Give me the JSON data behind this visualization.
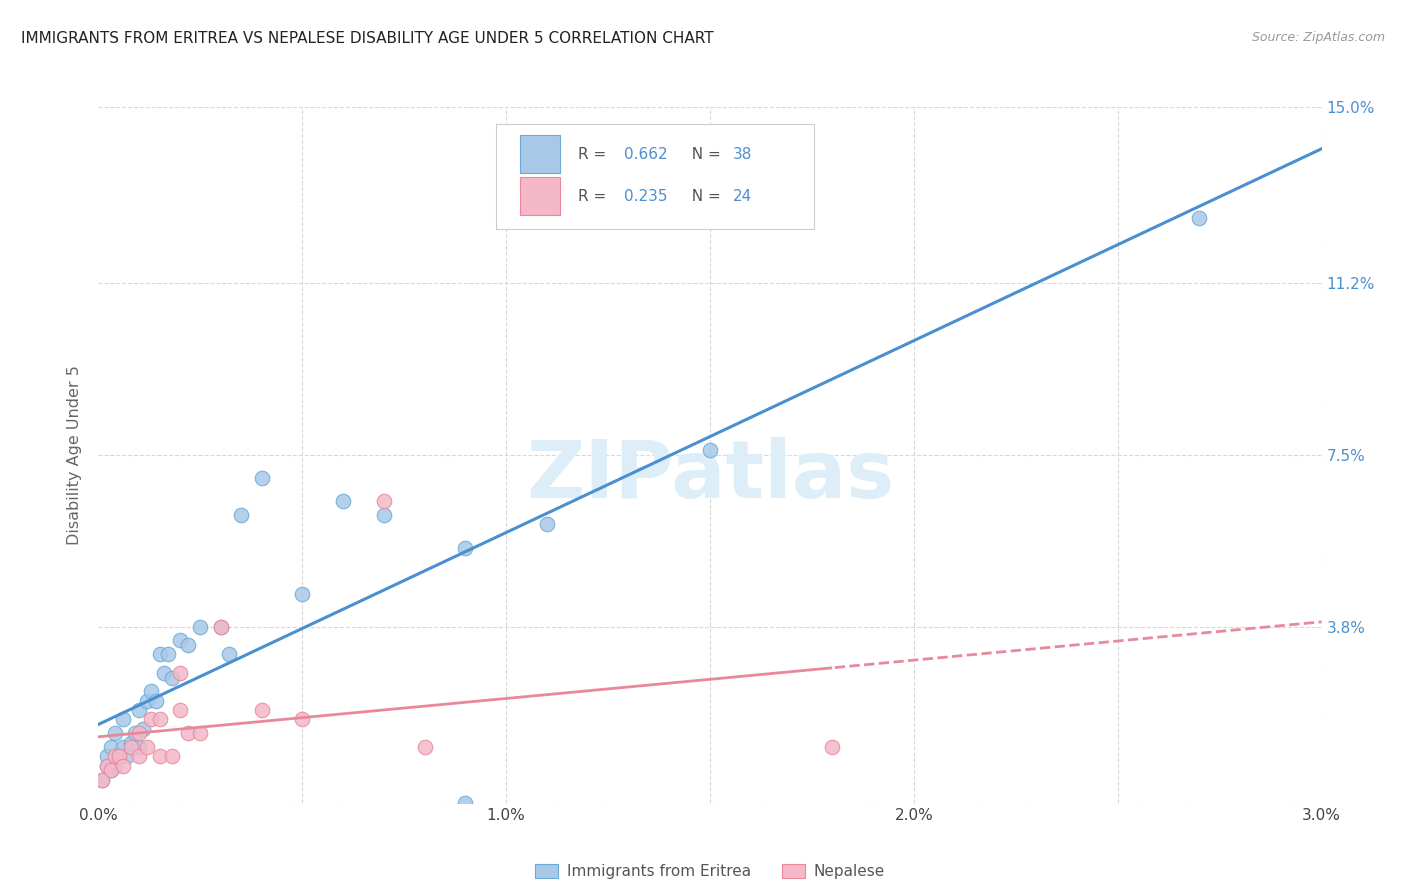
{
  "title": "IMMIGRANTS FROM ERITREA VS NEPALESE DISABILITY AGE UNDER 5 CORRELATION CHART",
  "source": "Source: ZipAtlas.com",
  "ylabel": "Disability Age Under 5",
  "y_ticks": [
    0.0,
    0.038,
    0.075,
    0.112,
    0.15
  ],
  "y_tick_labels_right": [
    "",
    "3.8%",
    "7.5%",
    "11.2%",
    "15.0%"
  ],
  "x_ticks": [
    0.0,
    0.005,
    0.01,
    0.015,
    0.02,
    0.025,
    0.03
  ],
  "x_tick_labels": [
    "0.0%",
    "",
    "1.0%",
    "",
    "2.0%",
    "",
    "3.0%"
  ],
  "xlim": [
    0.0,
    0.03
  ],
  "ylim": [
    0.0,
    0.15
  ],
  "legend_r1": "0.662",
  "legend_n1": "38",
  "legend_r2": "0.235",
  "legend_n2": "24",
  "color_blue_fill": "#a8c8e8",
  "color_blue_edge": "#6aaad4",
  "color_blue_line": "#4a90d0",
  "color_pink_fill": "#f4b8c8",
  "color_pink_edge": "#e8889a",
  "color_pink_line": "#e8889a",
  "background_color": "#ffffff",
  "grid_color": "#d8d8d8",
  "eritrea_x": [
    0.0001,
    0.0002,
    0.0002,
    0.0003,
    0.0003,
    0.0004,
    0.0004,
    0.0005,
    0.0006,
    0.0006,
    0.0007,
    0.0008,
    0.0009,
    0.001,
    0.001,
    0.0011,
    0.0012,
    0.0013,
    0.0014,
    0.0015,
    0.0016,
    0.0017,
    0.0018,
    0.002,
    0.0022,
    0.0025,
    0.003,
    0.0032,
    0.0035,
    0.004,
    0.005,
    0.006,
    0.007,
    0.009,
    0.009,
    0.011,
    0.015,
    0.027
  ],
  "eritrea_y": [
    0.005,
    0.008,
    0.01,
    0.007,
    0.012,
    0.008,
    0.015,
    0.01,
    0.012,
    0.018,
    0.01,
    0.013,
    0.015,
    0.012,
    0.02,
    0.016,
    0.022,
    0.024,
    0.022,
    0.032,
    0.028,
    0.032,
    0.027,
    0.035,
    0.034,
    0.038,
    0.038,
    0.032,
    0.062,
    0.07,
    0.045,
    0.065,
    0.062,
    0.0,
    0.055,
    0.06,
    0.076,
    0.126
  ],
  "nepal_x": [
    0.0001,
    0.0002,
    0.0003,
    0.0004,
    0.0005,
    0.0006,
    0.0008,
    0.001,
    0.001,
    0.0012,
    0.0013,
    0.0015,
    0.0015,
    0.0018,
    0.002,
    0.002,
    0.0022,
    0.0025,
    0.003,
    0.004,
    0.005,
    0.007,
    0.008,
    0.018
  ],
  "nepal_y": [
    0.005,
    0.008,
    0.007,
    0.01,
    0.01,
    0.008,
    0.012,
    0.01,
    0.015,
    0.012,
    0.018,
    0.018,
    0.01,
    0.01,
    0.02,
    0.028,
    0.015,
    0.015,
    0.038,
    0.02,
    0.018,
    0.065,
    0.012,
    0.012
  ],
  "watermark_text": "ZIPatlas",
  "watermark_color": "#ddeef8"
}
